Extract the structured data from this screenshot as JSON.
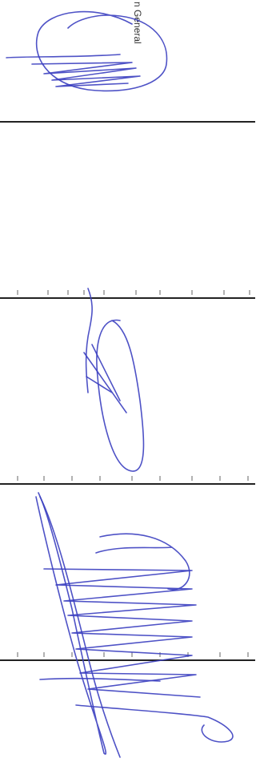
{
  "document": {
    "text": "n General"
  }
}
